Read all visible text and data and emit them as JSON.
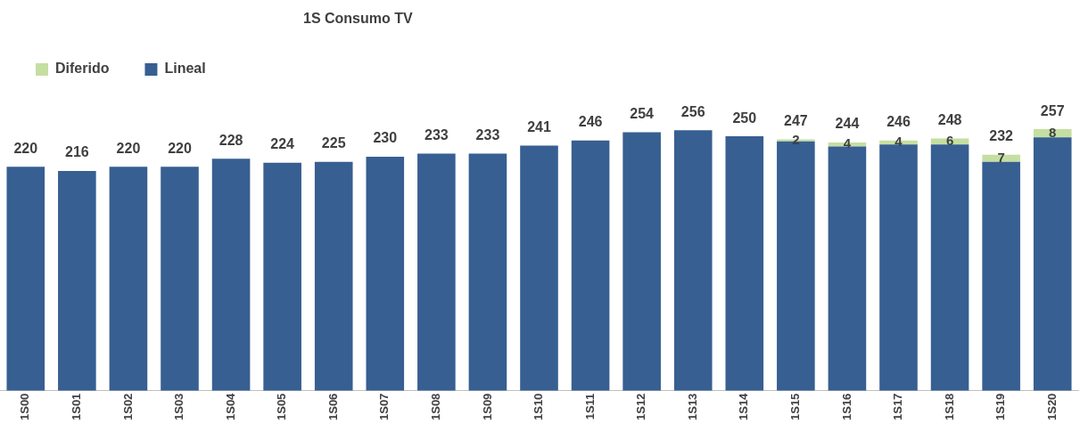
{
  "chart_data": {
    "type": "bar",
    "title": "1S Consumo TV",
    "categories": [
      "1S00",
      "1S01",
      "1S02",
      "1S03",
      "1S04",
      "1S05",
      "1S06",
      "1S07",
      "1S08",
      "1S09",
      "1S10",
      "1S11",
      "1S12",
      "1S13",
      "1S14",
      "1S15",
      "1S16",
      "1S17",
      "1S18",
      "1S19",
      "1S20"
    ],
    "series": [
      {
        "name": "Lineal",
        "color": "#375f91",
        "values": [
          220,
          216,
          220,
          220,
          228,
          224,
          225,
          230,
          233,
          233,
          241,
          246,
          254,
          256,
          250,
          245,
          240,
          242,
          242,
          225,
          249
        ]
      },
      {
        "name": "Diferido",
        "color": "#c4dfa1",
        "values": [
          null,
          null,
          null,
          null,
          null,
          null,
          null,
          null,
          null,
          null,
          null,
          null,
          null,
          null,
          null,
          2,
          4,
          4,
          6,
          7,
          8
        ],
        "value_labels": [
          null,
          null,
          null,
          null,
          null,
          null,
          null,
          null,
          null,
          null,
          null,
          null,
          null,
          null,
          null,
          "2",
          "4",
          "4",
          "6",
          "7",
          "8"
        ]
      }
    ],
    "stacked": true,
    "tick_labels": "x",
    "grid": false,
    "legend": "top left",
    "totals": [
      "220",
      "216",
      "220",
      "220",
      "228",
      "224",
      "225",
      "230",
      "233",
      "233",
      "241",
      "246",
      "254",
      "256",
      "250",
      "247",
      "244",
      "246",
      "248",
      "232",
      "257"
    ]
  }
}
